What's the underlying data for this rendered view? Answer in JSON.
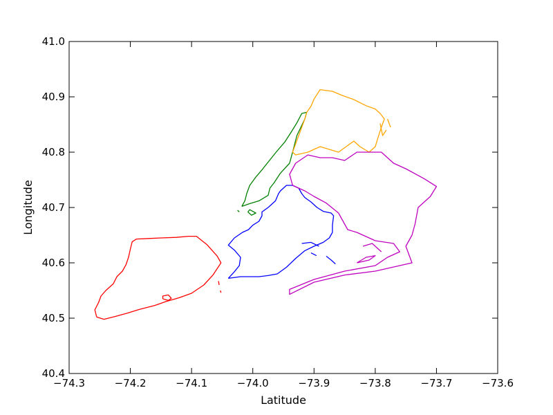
{
  "chart_data": {
    "type": "line",
    "title": "",
    "xlabel": "Latitude",
    "ylabel": "Longitude",
    "xlim": [
      -74.3,
      -73.6
    ],
    "ylim": [
      40.4,
      41.0
    ],
    "xticks": [
      -74.3,
      -74.2,
      -74.1,
      -74.0,
      -73.9,
      -73.8,
      -73.7,
      -73.6
    ],
    "yticks": [
      40.4,
      40.5,
      40.6,
      40.7,
      40.8,
      40.9,
      41.0
    ],
    "xtick_labels": [
      "−74.3",
      "−74.2",
      "−74.1",
      "−74.0",
      "−73.9",
      "−73.8",
      "−73.7",
      "−73.6"
    ],
    "ytick_labels": [
      "40.4",
      "40.5",
      "40.6",
      "40.7",
      "40.8",
      "40.9",
      "41.0"
    ],
    "grid": false,
    "legend": false,
    "series": [
      {
        "color": "#ff0000",
        "paths": [
          [
            [
              -74.255,
              40.502
            ],
            [
              -74.243,
              40.498
            ],
            [
              -74.225,
              40.503
            ],
            [
              -74.205,
              40.509
            ],
            [
              -74.185,
              40.516
            ],
            [
              -74.16,
              40.523
            ],
            [
              -74.142,
              40.53
            ],
            [
              -74.12,
              40.537
            ],
            [
              -74.1,
              40.545
            ],
            [
              -74.08,
              40.56
            ],
            [
              -74.065,
              40.578
            ],
            [
              -74.052,
              40.6
            ],
            [
              -74.058,
              40.612
            ],
            [
              -74.075,
              40.633
            ],
            [
              -74.092,
              40.648
            ],
            [
              -74.105,
              40.648
            ],
            [
              -74.125,
              40.646
            ],
            [
              -74.15,
              40.645
            ],
            [
              -74.17,
              40.644
            ],
            [
              -74.19,
              40.643
            ],
            [
              -74.197,
              40.638
            ],
            [
              -74.2,
              40.625
            ],
            [
              -74.203,
              40.61
            ],
            [
              -74.207,
              40.597
            ],
            [
              -74.213,
              40.585
            ],
            [
              -74.222,
              40.575
            ],
            [
              -74.228,
              40.562
            ],
            [
              -74.24,
              40.55
            ],
            [
              -74.248,
              40.54
            ],
            [
              -74.252,
              40.528
            ],
            [
              -74.258,
              40.515
            ],
            [
              -74.255,
              40.502
            ]
          ],
          [
            [
              -74.147,
              40.535
            ],
            [
              -74.138,
              40.532
            ],
            [
              -74.133,
              40.536
            ],
            [
              -74.138,
              40.542
            ],
            [
              -74.147,
              40.54
            ],
            [
              -74.147,
              40.535
            ]
          ],
          [
            [
              -74.056,
              40.567
            ],
            [
              -74.055,
              40.56
            ]
          ],
          [
            [
              -74.053,
              40.55
            ],
            [
              -74.052,
              40.546
            ]
          ]
        ]
      },
      {
        "color": "#0000ff",
        "paths": [
          [
            [
              -74.04,
              40.572
            ],
            [
              -74.03,
              40.584
            ],
            [
              -74.022,
              40.595
            ],
            [
              -74.02,
              40.61
            ],
            [
              -74.03,
              40.623
            ],
            [
              -74.04,
              40.632
            ],
            [
              -74.03,
              40.645
            ],
            [
              -74.017,
              40.655
            ],
            [
              -74.007,
              40.66
            ],
            [
              -74.0,
              40.668
            ],
            [
              -73.99,
              40.675
            ],
            [
              -73.985,
              40.685
            ],
            [
              -73.985,
              40.692
            ],
            [
              -73.975,
              40.7
            ],
            [
              -73.963,
              40.712
            ],
            [
              -73.958,
              40.725
            ],
            [
              -73.955,
              40.73
            ],
            [
              -73.945,
              40.74
            ],
            [
              -73.935,
              40.74
            ],
            [
              -73.925,
              40.735
            ],
            [
              -73.92,
              40.725
            ],
            [
              -73.915,
              40.718
            ],
            [
              -73.905,
              40.71
            ],
            [
              -73.895,
              40.7
            ],
            [
              -73.885,
              40.693
            ],
            [
              -73.872,
              40.69
            ],
            [
              -73.868,
              40.685
            ],
            [
              -73.87,
              40.668
            ],
            [
              -73.87,
              40.655
            ],
            [
              -73.875,
              40.645
            ],
            [
              -73.885,
              40.637
            ],
            [
              -73.9,
              40.63
            ],
            [
              -73.915,
              40.622
            ],
            [
              -73.93,
              40.608
            ],
            [
              -73.945,
              40.592
            ],
            [
              -73.96,
              40.58
            ],
            [
              -73.975,
              40.577
            ],
            [
              -73.99,
              40.575
            ],
            [
              -74.005,
              40.575
            ],
            [
              -74.02,
              40.575
            ],
            [
              -74.04,
              40.572
            ]
          ],
          [
            [
              -73.92,
              40.635
            ],
            [
              -73.905,
              40.637
            ],
            [
              -73.892,
              40.63
            ]
          ],
          [
            [
              -73.88,
              40.612
            ],
            [
              -73.872,
              40.605
            ],
            [
              -73.865,
              40.598
            ]
          ],
          [
            [
              -73.905,
              40.618
            ],
            [
              -73.896,
              40.613
            ]
          ]
        ]
      },
      {
        "color": "#008000",
        "paths": [
          [
            [
              -74.018,
              40.702
            ],
            [
              -74.013,
              40.712
            ],
            [
              -74.01,
              40.725
            ],
            [
              -74.005,
              40.74
            ],
            [
              -73.995,
              40.755
            ],
            [
              -73.985,
              40.768
            ],
            [
              -73.975,
              40.782
            ],
            [
              -73.962,
              40.8
            ],
            [
              -73.948,
              40.818
            ],
            [
              -73.938,
              40.835
            ],
            [
              -73.928,
              40.853
            ],
            [
              -73.92,
              40.87
            ],
            [
              -73.912,
              40.872
            ],
            [
              -73.915,
              40.86
            ],
            [
              -73.928,
              40.83
            ],
            [
              -73.935,
              40.8
            ],
            [
              -73.94,
              40.78
            ],
            [
              -73.955,
              40.762
            ],
            [
              -73.965,
              40.745
            ],
            [
              -73.972,
              40.735
            ],
            [
              -73.975,
              40.722
            ],
            [
              -73.99,
              40.712
            ],
            [
              -74.005,
              40.707
            ],
            [
              -74.018,
              40.702
            ]
          ],
          [
            [
              -74.008,
              40.692
            ],
            [
              -74.002,
              40.686
            ],
            [
              -73.995,
              40.69
            ],
            [
              -74.005,
              40.696
            ],
            [
              -74.008,
              40.692
            ]
          ],
          [
            [
              -74.022,
              40.692
            ],
            [
              -74.025,
              40.695
            ]
          ]
        ]
      },
      {
        "color": "#ffa500",
        "paths": [
          [
            [
              -73.912,
              40.872
            ],
            [
              -73.905,
              40.883
            ],
            [
              -73.9,
              40.896
            ],
            [
              -73.89,
              40.913
            ],
            [
              -73.87,
              40.91
            ],
            [
              -73.855,
              40.903
            ],
            [
              -73.835,
              40.895
            ],
            [
              -73.815,
              40.884
            ],
            [
              -73.8,
              40.878
            ],
            [
              -73.792,
              40.87
            ],
            [
              -73.785,
              40.86
            ],
            [
              -73.79,
              40.845
            ],
            [
              -73.795,
              40.828
            ],
            [
              -73.8,
              40.81
            ],
            [
              -73.81,
              40.8
            ],
            [
              -73.825,
              40.81
            ],
            [
              -73.835,
              40.82
            ],
            [
              -73.845,
              40.812
            ],
            [
              -73.86,
              40.8
            ],
            [
              -73.875,
              40.805
            ],
            [
              -73.89,
              40.81
            ],
            [
              -73.91,
              40.8
            ],
            [
              -73.93,
              40.795
            ],
            [
              -73.935,
              40.8
            ],
            [
              -73.925,
              40.83
            ],
            [
              -73.915,
              40.86
            ],
            [
              -73.912,
              40.872
            ]
          ],
          [
            [
              -73.792,
              40.852
            ],
            [
              -73.788,
              40.83
            ],
            [
              -73.782,
              40.84
            ]
          ],
          [
            [
              -73.78,
              40.86
            ],
            [
              -73.775,
              40.845
            ]
          ]
        ]
      },
      {
        "color": "#bf00bf",
        "paths": [
          [
            [
              -73.935,
              40.74
            ],
            [
              -73.94,
              40.76
            ],
            [
              -73.93,
              40.78
            ],
            [
              -73.91,
              40.795
            ],
            [
              -73.89,
              40.79
            ],
            [
              -73.87,
              40.79
            ],
            [
              -73.85,
              40.785
            ],
            [
              -73.83,
              40.8
            ],
            [
              -73.81,
              40.8
            ],
            [
              -73.79,
              40.8
            ],
            [
              -73.77,
              40.78
            ],
            [
              -73.75,
              40.77
            ],
            [
              -73.72,
              40.752
            ],
            [
              -73.7,
              40.738
            ],
            [
              -73.71,
              40.72
            ],
            [
              -73.73,
              40.7
            ],
            [
              -73.735,
              40.67
            ],
            [
              -73.74,
              40.65
            ],
            [
              -73.75,
              40.63
            ],
            [
              -73.74,
              40.6
            ],
            [
              -73.76,
              40.595
            ],
            [
              -73.8,
              40.585
            ],
            [
              -73.85,
              40.578
            ],
            [
              -73.9,
              40.565
            ],
            [
              -73.94,
              40.543
            ],
            [
              -73.94,
              40.552
            ],
            [
              -73.9,
              40.57
            ],
            [
              -73.85,
              40.585
            ],
            [
              -73.8,
              40.595
            ],
            [
              -73.78,
              40.61
            ],
            [
              -73.76,
              40.62
            ],
            [
              -73.77,
              40.635
            ],
            [
              -73.8,
              40.64
            ],
            [
              -73.83,
              40.655
            ],
            [
              -73.845,
              40.66
            ],
            [
              -73.86,
              40.69
            ],
            [
              -73.88,
              40.708
            ],
            [
              -73.9,
              40.72
            ],
            [
              -73.915,
              40.73
            ],
            [
              -73.925,
              40.735
            ],
            [
              -73.935,
              40.74
            ]
          ],
          [
            [
              -73.83,
              40.6
            ],
            [
              -73.81,
              40.605
            ],
            [
              -73.8,
              40.613
            ],
            [
              -73.815,
              40.61
            ],
            [
              -73.83,
              40.6
            ]
          ],
          [
            [
              -73.82,
              40.63
            ],
            [
              -73.805,
              40.635
            ],
            [
              -73.79,
              40.62
            ]
          ]
        ]
      }
    ]
  }
}
